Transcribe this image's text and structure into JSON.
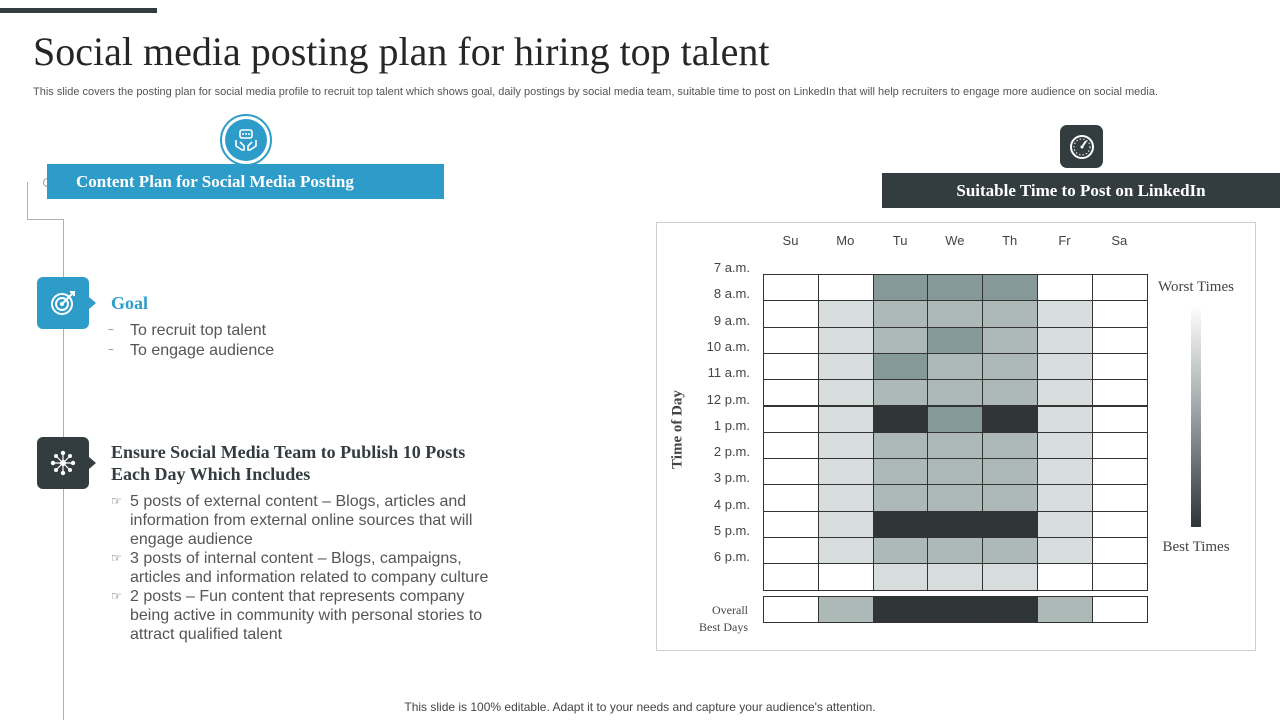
{
  "title": "Social media posting plan for hiring top talent",
  "subtitle": "This slide covers the posting plan for social media profile to recruit top talent which shows goal, daily postings by social media team, suitable time to post on LinkedIn that will help recruiters to engage more audience on social media.",
  "content_plan": {
    "banner": "Content Plan for Social Media Posting",
    "icon": "hands-chat-icon",
    "goal": {
      "heading": "Goal",
      "icon": "target-icon",
      "items": [
        "To recruit top talent",
        "To engage audience"
      ]
    },
    "team": {
      "heading": "Ensure Social Media Team to Publish 10 Posts Each Day Which Includes",
      "icon": "network-icon",
      "items": [
        "5 posts of external content – Blogs, articles and information from external online sources that will engage audience",
        "3 posts of internal content – Blogs, campaigns, articles and information related to company culture",
        "2 posts – Fun content that represents company being active in community with personal stories to attract qualified talent"
      ]
    }
  },
  "linkedin": {
    "banner": "Suitable Time to Post on LinkedIn",
    "icon": "clock-icon",
    "days": [
      "Su",
      "Mo",
      "Tu",
      "We",
      "Th",
      "Fr",
      "Sa"
    ],
    "times": [
      "7 a.m.",
      "8 a.m.",
      "9 a.m.",
      "10 a.m.",
      "11 a.m.",
      "12 p.m.",
      "1 p.m.",
      "2 p.m.",
      "3 p.m.",
      "4 p.m.",
      "5 p.m.",
      "6 p.m."
    ],
    "y_axis_title": "Time of Day",
    "overall_label_1": "Overall",
    "overall_label_2": "Best Days",
    "legend_worst": "Worst Times",
    "legend_best": "Best Times",
    "colors": {
      "white": "#ffffff",
      "light": "#d7dcdd",
      "mid": "#adb9b7",
      "midDark": "#859a98",
      "dark": "#2f3436"
    },
    "grid": [
      [
        "white",
        "white",
        "midDark",
        "midDark",
        "midDark",
        "white",
        "white"
      ],
      [
        "white",
        "light",
        "mid",
        "mid",
        "mid",
        "light",
        "white"
      ],
      [
        "white",
        "light",
        "mid",
        "midDark",
        "mid",
        "light",
        "white"
      ],
      [
        "white",
        "light",
        "midDark",
        "mid",
        "mid",
        "light",
        "white"
      ],
      [
        "white",
        "light",
        "mid",
        "mid",
        "mid",
        "light",
        "white"
      ],
      [
        "white",
        "light",
        "dark",
        "midDark",
        "dark",
        "light",
        "white"
      ],
      [
        "white",
        "light",
        "mid",
        "mid",
        "mid",
        "light",
        "white"
      ],
      [
        "white",
        "light",
        "mid",
        "mid",
        "mid",
        "light",
        "white"
      ],
      [
        "white",
        "light",
        "mid",
        "mid",
        "mid",
        "light",
        "white"
      ],
      [
        "white",
        "light",
        "dark",
        "dark",
        "dark",
        "light",
        "white"
      ],
      [
        "white",
        "light",
        "mid",
        "mid",
        "mid",
        "light",
        "white"
      ],
      [
        "white",
        "white",
        "light",
        "light",
        "light",
        "white",
        "white"
      ]
    ],
    "overall": [
      "white",
      "mid",
      "dark",
      "dark",
      "dark",
      "mid",
      "white"
    ]
  },
  "footer": "This slide is 100% editable. Adapt it to your needs and capture your audience's attention."
}
